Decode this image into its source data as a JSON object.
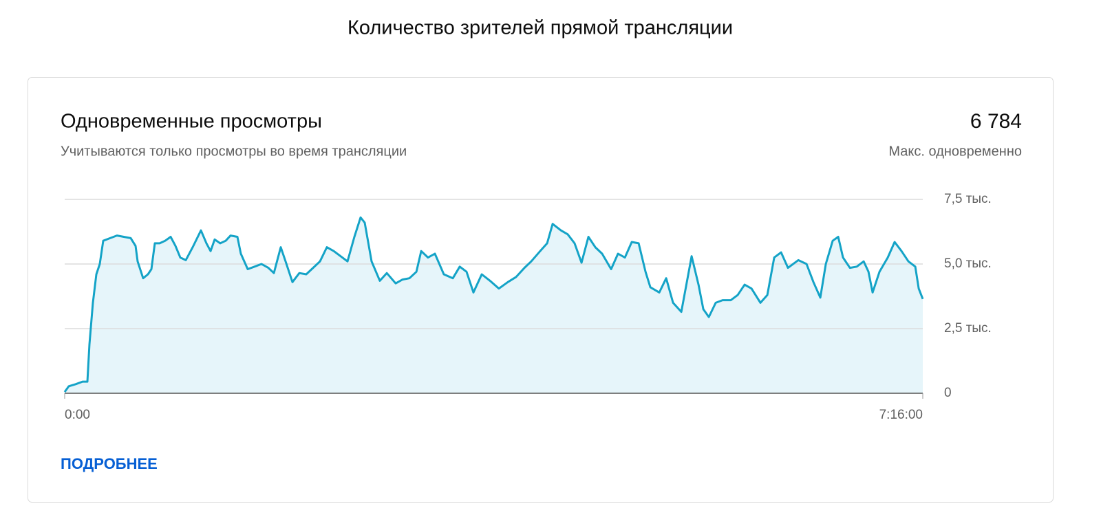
{
  "header": {
    "title": "Количество зрителей прямой трансляции"
  },
  "card": {
    "title": "Одновременные просмотры",
    "subtitle": "Учитываются только просмотры во время трансляции",
    "max_value": "6 784",
    "max_label": "Макс. одновременно",
    "link": "ПОДРОБНЕЕ"
  },
  "chart_data": {
    "type": "line",
    "color": "#14a3c7",
    "fill_color": "#e6f5fa",
    "x": [
      0,
      126,
      336,
      545,
      692,
      755,
      860,
      965,
      1070,
      1175,
      1385,
      1594,
      1804,
      2014,
      2161,
      2224,
      2392,
      2539,
      2643,
      2748,
      2895,
      3063,
      3231,
      3378,
      3525,
      3692,
      3902,
      4154,
      4322,
      4448,
      4574,
      4741,
      4909,
      5056,
      5266,
      5371,
      5580,
      5790,
      6000,
      6210,
      6378,
      6587,
      6734,
      6944,
      7154,
      7364,
      7574,
      7783,
      7993,
      8203,
      8413,
      8623,
      8832,
      9021,
      9147,
      9357,
      9609,
      9819,
      10091,
      10301,
      10511,
      10721,
      10868,
      11077,
      11287,
      11560,
      11833,
      12043,
      12252,
      12462,
      12714,
      12966,
      13238,
      13511,
      13763,
      14015,
      14224,
      14497,
      14707,
      14875,
      15127,
      15336,
      15546,
      15756,
      15966,
      16176,
      16385,
      16658,
      16868,
      17078,
      17288,
      17497,
      17707,
      17854,
      18127,
      18337,
      18546,
      18798,
      19113,
      19323,
      19469,
      19637,
      19847,
      20057,
      20309,
      20518,
      20728,
      20938,
      21211,
      21421,
      21630,
      21840,
      22050,
      22365,
      22616,
      22826,
      23036,
      23204,
      23414,
      23582,
      23728,
      23938,
      24148,
      24358,
      24505,
      24631,
      24840,
      25092,
      25302,
      25512,
      25722,
      25931,
      26036,
      26160
    ],
    "values": [
      50,
      270,
      350,
      450,
      450,
      1900,
      3500,
      4600,
      5000,
      5900,
      6000,
      6100,
      6050,
      6000,
      5700,
      5100,
      4450,
      4600,
      4800,
      5800,
      5800,
      5900,
      6050,
      5700,
      5250,
      5150,
      5650,
      6300,
      5800,
      5500,
      5950,
      5800,
      5900,
      6100,
      6050,
      5400,
      4800,
      4900,
      5000,
      4850,
      4650,
      5650,
      5100,
      4300,
      4650,
      4600,
      4850,
      5100,
      5650,
      5500,
      5300,
      5100,
      6050,
      6800,
      6600,
      5100,
      4350,
      4650,
      4250,
      4400,
      4450,
      4700,
      5500,
      5250,
      5400,
      4600,
      4450,
      4900,
      4700,
      3900,
      4600,
      4350,
      4050,
      4300,
      4500,
      4850,
      5100,
      5500,
      5800,
      6550,
      6300,
      6150,
      5800,
      5050,
      6050,
      5650,
      5400,
      4800,
      5400,
      5250,
      5850,
      5800,
      4700,
      4100,
      3900,
      4450,
      3500,
      3150,
      5300,
      4200,
      3250,
      2950,
      3500,
      3600,
      3600,
      3800,
      4200,
      4050,
      3500,
      3800,
      5250,
      5450,
      4850,
      5150,
      5000,
      4300,
      3700,
      5000,
      5900,
      6050,
      5250,
      4850,
      4900,
      5100,
      4700,
      3900,
      4700,
      5250,
      5850,
      5500,
      5100,
      4900,
      4050,
      3650
    ],
    "xlim": [
      0,
      26160
    ],
    "xticks": [
      {
        "value": 0,
        "label": "0:00"
      },
      {
        "value": 26160,
        "label": "7:16:00"
      }
    ],
    "ylim": [
      0,
      7500
    ],
    "yticks": [
      0,
      {
        "value": 2500,
        "label": "2,5 тыс."
      },
      {
        "value": 5000,
        "label": "5,0 тыс."
      },
      {
        "value": 7500,
        "label": "7,5 тыс."
      }
    ],
    "grid": true
  }
}
